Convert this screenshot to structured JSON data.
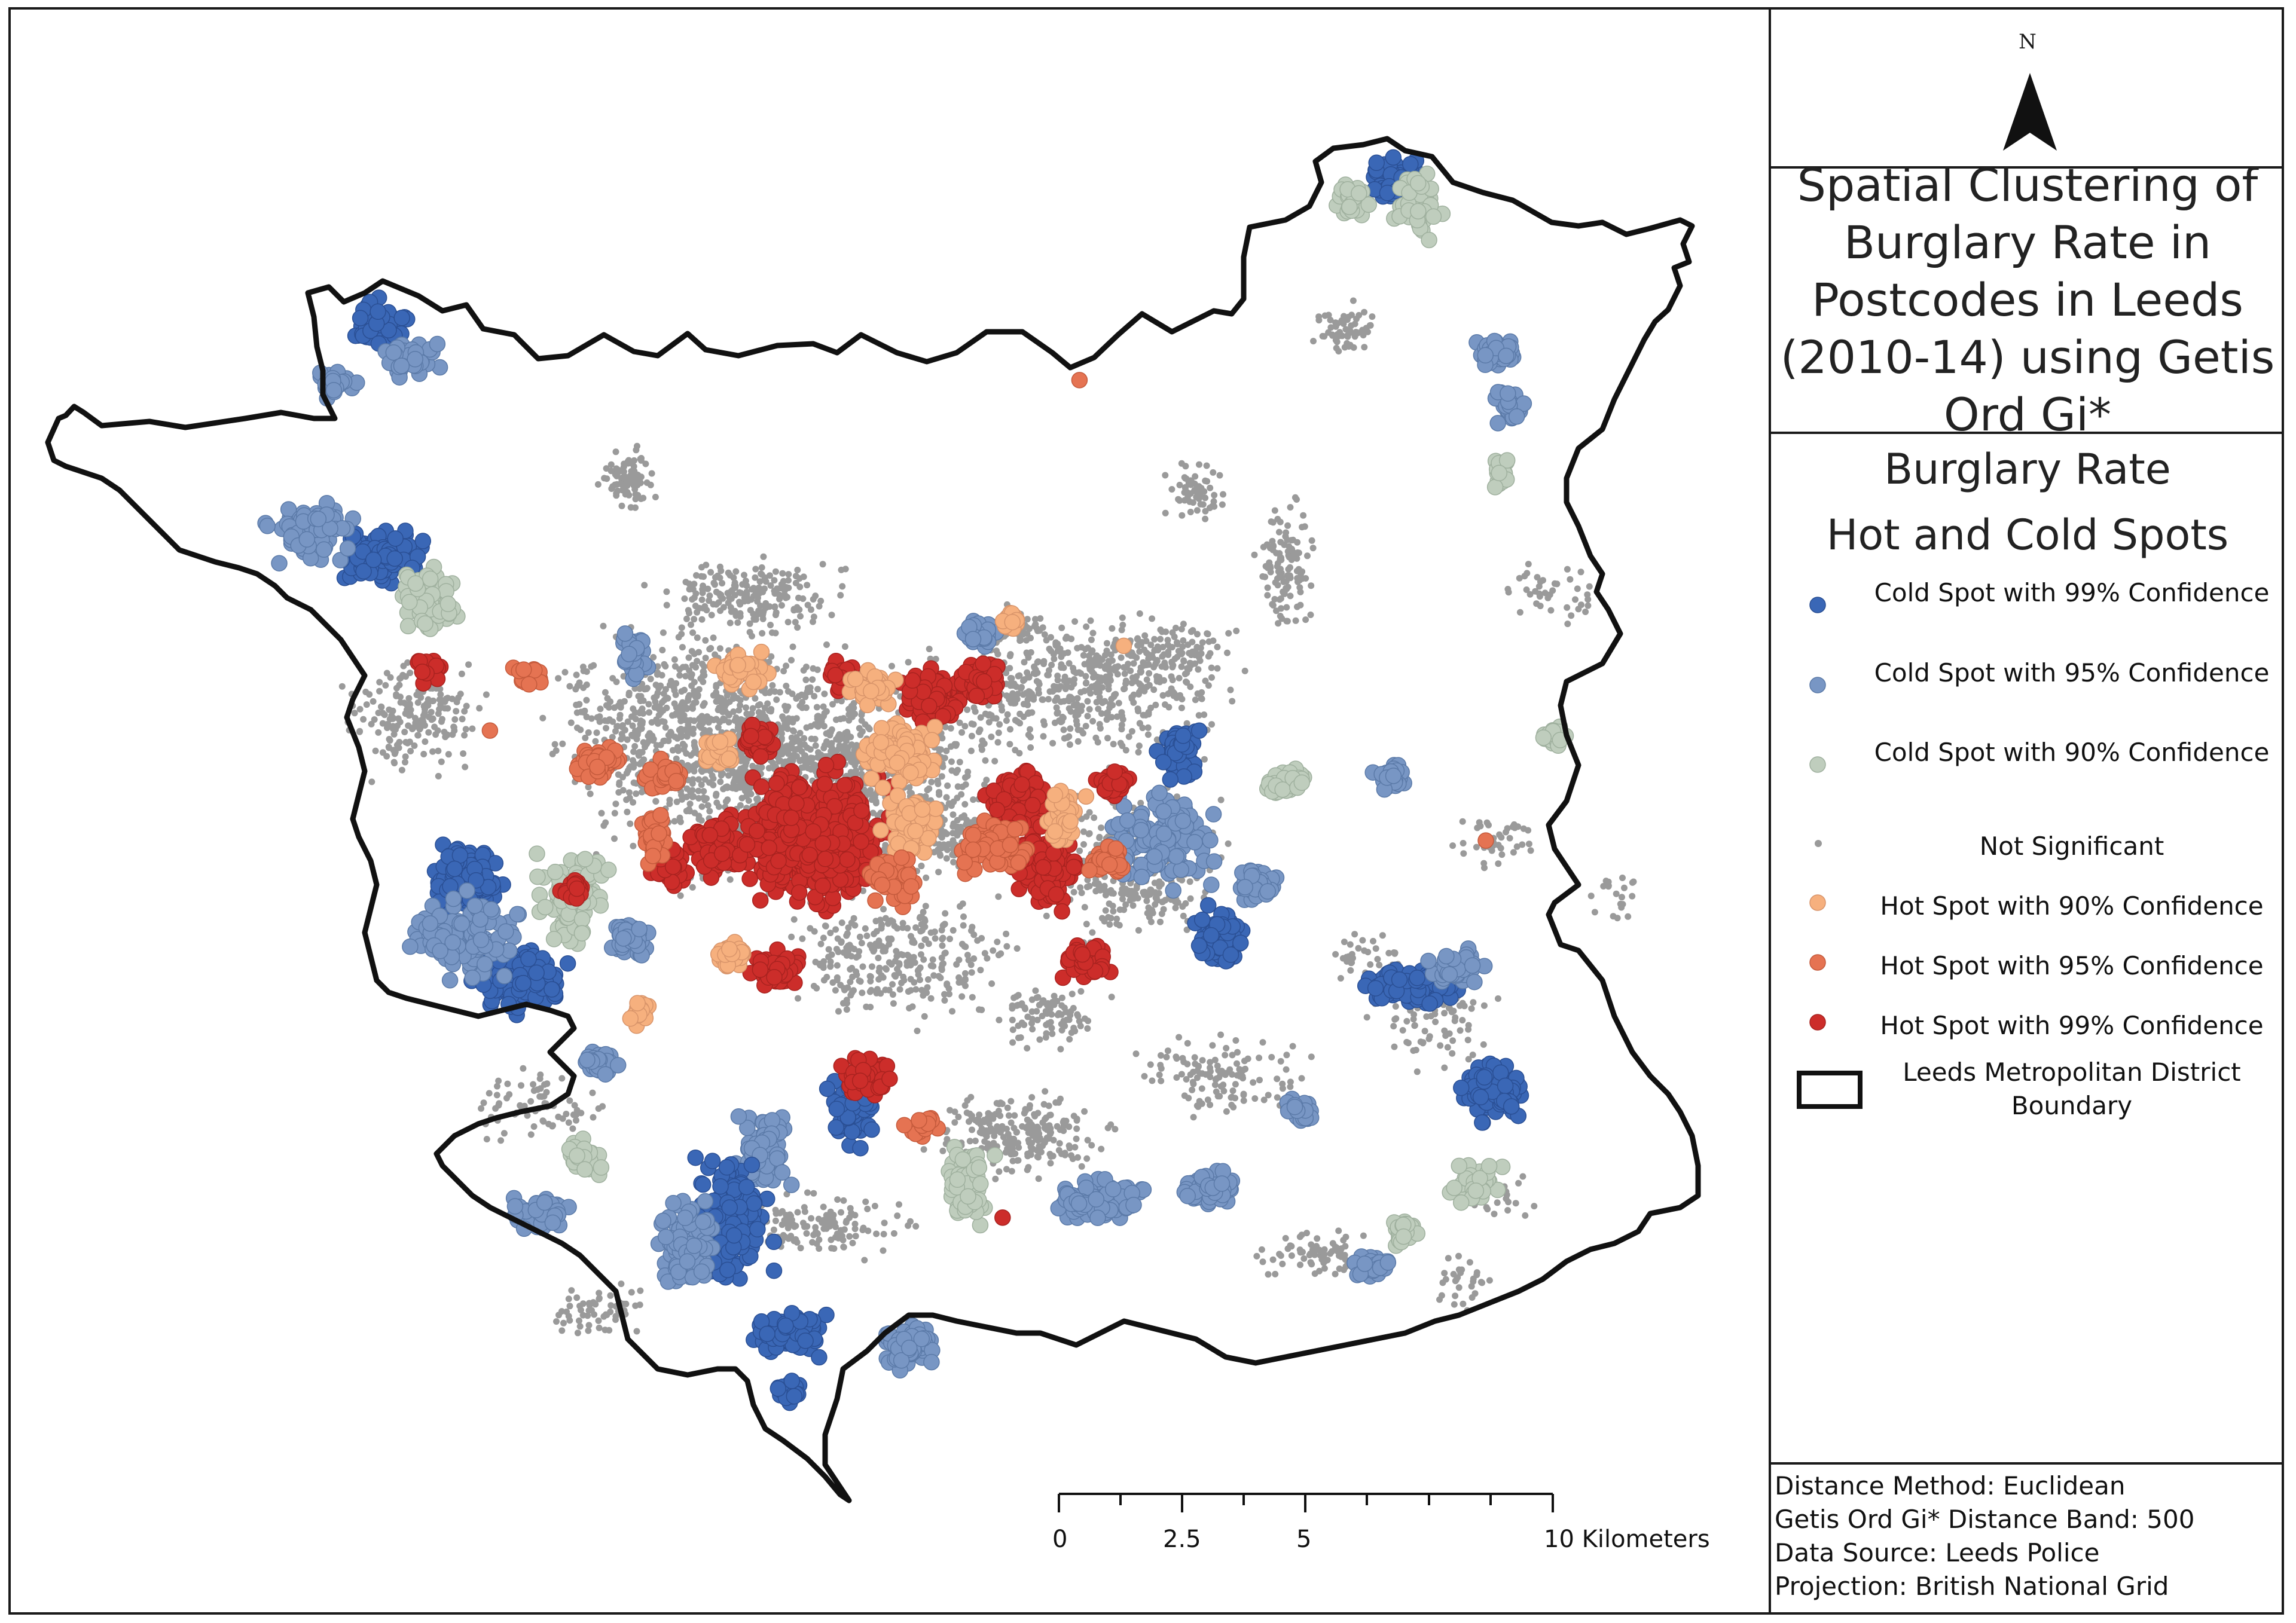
{
  "map": {
    "title": "Spatial Clustering of Burglary Rate in Postcodes in Leeds (2010-14) using Getis Ord Gi*",
    "north_label": "N",
    "legend": {
      "heading_line1": "Burglary Rate",
      "heading_line2": "Hot and Cold Spots",
      "items": [
        {
          "label": "Cold Spot with 99% Confidence",
          "color": "#3a67b6"
        },
        {
          "label": "Cold Spot with 95% Confidence",
          "color": "#7896c4"
        },
        {
          "label": "Cold Spot with 90% Confidence",
          "color": "#bfcdbd"
        },
        {
          "label": "Not Significant",
          "color": "#9a9a9a"
        },
        {
          "label": "Hot Spot with 90% Confidence",
          "color": "#f6b07e"
        },
        {
          "label": "Hot Spot with 95% Confidence",
          "color": "#e57352"
        },
        {
          "label": "Hot Spot with 99% Confidence",
          "color": "#cc2d2a"
        },
        {
          "label": "Leeds Metropolitan District Boundary",
          "color": "#111111"
        }
      ]
    },
    "info": {
      "distance_method": "Distance Method: Euclidean",
      "distance_band": "Getis Ord Gi* Distance Band: 500",
      "data_source": "Data Source: Leeds Police",
      "projection": "Projection: British National Grid"
    },
    "scale_bar": {
      "labels": [
        "0",
        "2.5",
        "5",
        "10 Kilometers"
      ]
    }
  }
}
